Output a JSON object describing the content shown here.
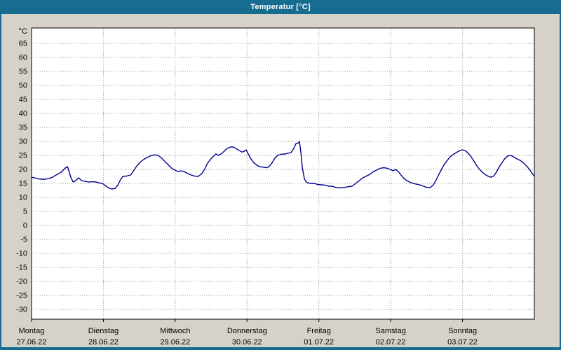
{
  "window": {
    "title": "Temperatur [°C]",
    "title_bar_color": "#166d8f",
    "background_color": "#d6d2c9",
    "plot_background": "#ffffff",
    "line_color": "#00008b",
    "grid_color": "#9a9a9a",
    "text_color": "#000000"
  },
  "chart_data": {
    "type": "line",
    "title": "Temperatur [°C]",
    "xlabel": "",
    "ylabel": "°C",
    "ylim": [
      -30,
      65
    ],
    "grid": true,
    "legend": "none",
    "y_axis": {
      "min": -30,
      "max": 65,
      "tick_step": 5,
      "unit_label": "°C"
    },
    "x_axis": {
      "hours_total": 168,
      "days": [
        {
          "name": "Montag",
          "date": "27.06.22"
        },
        {
          "name": "Dienstag",
          "date": "28.06.22"
        },
        {
          "name": "Mittwoch",
          "date": "29.06.22"
        },
        {
          "name": "Donnerstag",
          "date": "30.06.22"
        },
        {
          "name": "Freitag",
          "date": "01.07.22"
        },
        {
          "name": "Samstag",
          "date": "02.07.22"
        },
        {
          "name": "Sonntag",
          "date": "03.07.22"
        }
      ]
    },
    "series": [
      {
        "name": "Temperatur",
        "unit": "°C",
        "points": [
          [
            0,
            17.2
          ],
          [
            1,
            17
          ],
          [
            2.3,
            16.6
          ],
          [
            3.5,
            16.5
          ],
          [
            4.7,
            16.5
          ],
          [
            5.9,
            16.8
          ],
          [
            7,
            17.2
          ],
          [
            8.2,
            18
          ],
          [
            9.9,
            19
          ],
          [
            11.3,
            20.5
          ],
          [
            12,
            21
          ],
          [
            13.2,
            17
          ],
          [
            13.9,
            15.5
          ],
          [
            14.8,
            16
          ],
          [
            15.7,
            17
          ],
          [
            16.7,
            16
          ],
          [
            17.6,
            15.8
          ],
          [
            19,
            15.5
          ],
          [
            20.9,
            15.6
          ],
          [
            22.6,
            15.2
          ],
          [
            24,
            14.8
          ],
          [
            24.9,
            14
          ],
          [
            25.8,
            13.4
          ],
          [
            26.8,
            13
          ],
          [
            28,
            13.2
          ],
          [
            28.9,
            14.5
          ],
          [
            29.8,
            16.5
          ],
          [
            30.5,
            17.5
          ],
          [
            31.7,
            17.6
          ],
          [
            33.1,
            18
          ],
          [
            34.1,
            19.5
          ],
          [
            35,
            21
          ],
          [
            36.2,
            22.5
          ],
          [
            37.4,
            23.5
          ],
          [
            38.5,
            24.2
          ],
          [
            39.7,
            24.8
          ],
          [
            41.1,
            25.2
          ],
          [
            42.3,
            25
          ],
          [
            43.5,
            24
          ],
          [
            44.6,
            22.8
          ],
          [
            45.8,
            21.5
          ],
          [
            47,
            20.2
          ],
          [
            47.9,
            19.8
          ],
          [
            48.9,
            19.2
          ],
          [
            49.8,
            19.5
          ],
          [
            51,
            19.2
          ],
          [
            52.2,
            18.5
          ],
          [
            53.3,
            18
          ],
          [
            54.5,
            17.6
          ],
          [
            55.7,
            17.5
          ],
          [
            56.9,
            18.5
          ],
          [
            57.8,
            20
          ],
          [
            58.7,
            22
          ],
          [
            59.7,
            23.5
          ],
          [
            60.6,
            24.5
          ],
          [
            61.6,
            25.5
          ],
          [
            62.5,
            25
          ],
          [
            63.4,
            25.6
          ],
          [
            64.4,
            26.5
          ],
          [
            65.3,
            27.5
          ],
          [
            66.5,
            28
          ],
          [
            67.4,
            28
          ],
          [
            68.4,
            27.4
          ],
          [
            69.3,
            26.8
          ],
          [
            70.3,
            26.2
          ],
          [
            71,
            26.4
          ],
          [
            71.7,
            27
          ],
          [
            72.4,
            25.5
          ],
          [
            73.3,
            23.8
          ],
          [
            74.2,
            22.4
          ],
          [
            75.2,
            21.6
          ],
          [
            76.1,
            21
          ],
          [
            77.3,
            20.8
          ],
          [
            78.5,
            20.6
          ],
          [
            79.4,
            21
          ],
          [
            80.4,
            22.4
          ],
          [
            81.3,
            24
          ],
          [
            82.2,
            25
          ],
          [
            83.4,
            25.4
          ],
          [
            84.6,
            25.5
          ],
          [
            85.8,
            25.8
          ],
          [
            86.7,
            26
          ],
          [
            87.6,
            27.5
          ],
          [
            88.4,
            29.3
          ],
          [
            89.1,
            29.4
          ],
          [
            89.5,
            30
          ],
          [
            90,
            26
          ],
          [
            90.5,
            20.5
          ],
          [
            91.2,
            16.5
          ],
          [
            91.9,
            15.4
          ],
          [
            93,
            15
          ],
          [
            94.5,
            15
          ],
          [
            95.6,
            14.6
          ],
          [
            96.8,
            14.5
          ],
          [
            98,
            14.4
          ],
          [
            99.2,
            14
          ],
          [
            100.4,
            14
          ],
          [
            101.5,
            13.6
          ],
          [
            102.9,
            13.4
          ],
          [
            104.3,
            13.5
          ],
          [
            105.7,
            13.8
          ],
          [
            107.1,
            14
          ],
          [
            108.3,
            15
          ],
          [
            109.5,
            16
          ],
          [
            110.7,
            17
          ],
          [
            111.8,
            17.6
          ],
          [
            113,
            18.2
          ],
          [
            114.2,
            19.2
          ],
          [
            115.4,
            19.8
          ],
          [
            116.5,
            20.4
          ],
          [
            117.7,
            20.6
          ],
          [
            118.9,
            20.4
          ],
          [
            119.8,
            20
          ],
          [
            120.8,
            19.5
          ],
          [
            121.7,
            20
          ],
          [
            122.7,
            19
          ],
          [
            123.6,
            17.8
          ],
          [
            124.6,
            16.6
          ],
          [
            125.7,
            15.8
          ],
          [
            126.9,
            15.2
          ],
          [
            128.3,
            14.8
          ],
          [
            129.7,
            14.5
          ],
          [
            130.9,
            14
          ],
          [
            132,
            13.6
          ],
          [
            133.2,
            13.5
          ],
          [
            134.2,
            14.4
          ],
          [
            135.1,
            16
          ],
          [
            136,
            18
          ],
          [
            137,
            20
          ],
          [
            137.9,
            21.8
          ],
          [
            138.9,
            23.2
          ],
          [
            139.8,
            24.4
          ],
          [
            141,
            25.4
          ],
          [
            142.2,
            26.2
          ],
          [
            143.3,
            26.8
          ],
          [
            144,
            27
          ],
          [
            145,
            26.6
          ],
          [
            145.9,
            25.8
          ],
          [
            146.8,
            24.6
          ],
          [
            147.8,
            23
          ],
          [
            148.7,
            21.4
          ],
          [
            149.7,
            20
          ],
          [
            150.6,
            19
          ],
          [
            151.5,
            18.2
          ],
          [
            152.5,
            17.6
          ],
          [
            153.4,
            17.2
          ],
          [
            154.4,
            17.6
          ],
          [
            155.3,
            19
          ],
          [
            156.2,
            20.8
          ],
          [
            157.2,
            22.4
          ],
          [
            158.1,
            23.8
          ],
          [
            159.1,
            24.8
          ],
          [
            160,
            25
          ],
          [
            160.9,
            24.6
          ],
          [
            162.1,
            23.8
          ],
          [
            163.3,
            23.2
          ],
          [
            164.5,
            22.2
          ],
          [
            165.6,
            21
          ],
          [
            166.6,
            19.6
          ],
          [
            167.5,
            18.2
          ],
          [
            168,
            17.6
          ]
        ]
      }
    ]
  }
}
